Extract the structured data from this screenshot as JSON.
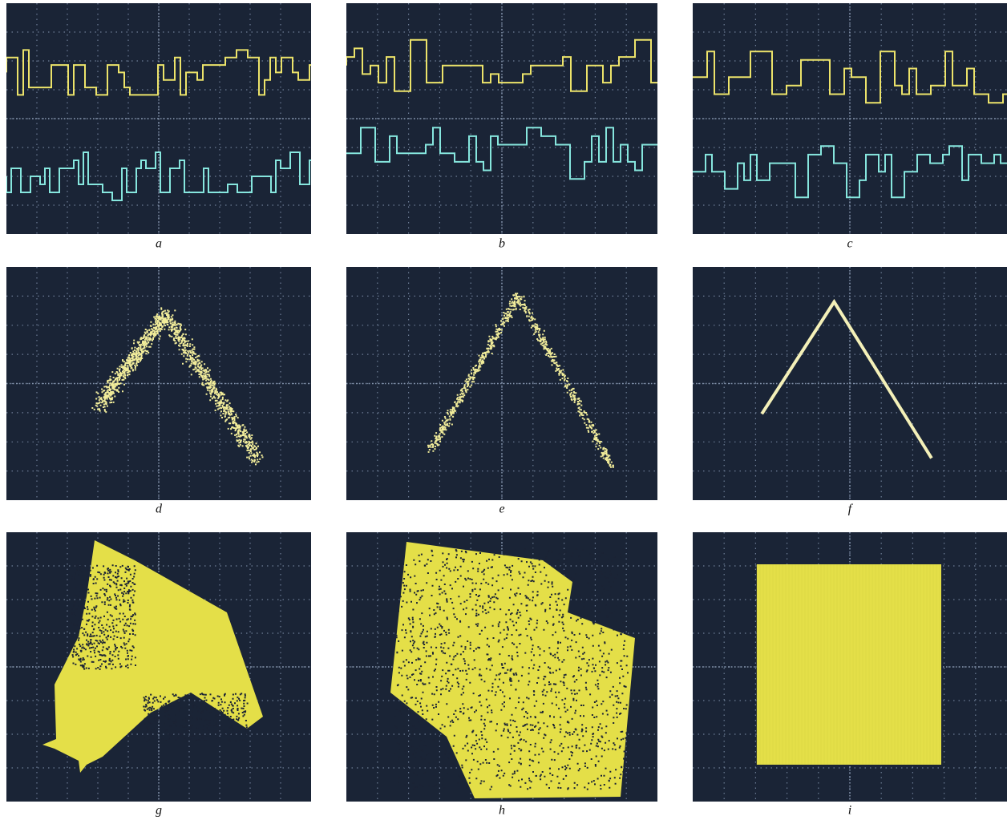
{
  "panels": [
    {
      "label": "a"
    },
    {
      "label": "b"
    },
    {
      "label": "c"
    },
    {
      "label": "d"
    },
    {
      "label": "e"
    },
    {
      "label": "f"
    },
    {
      "label": "g"
    },
    {
      "label": "h"
    },
    {
      "label": "i"
    }
  ]
}
